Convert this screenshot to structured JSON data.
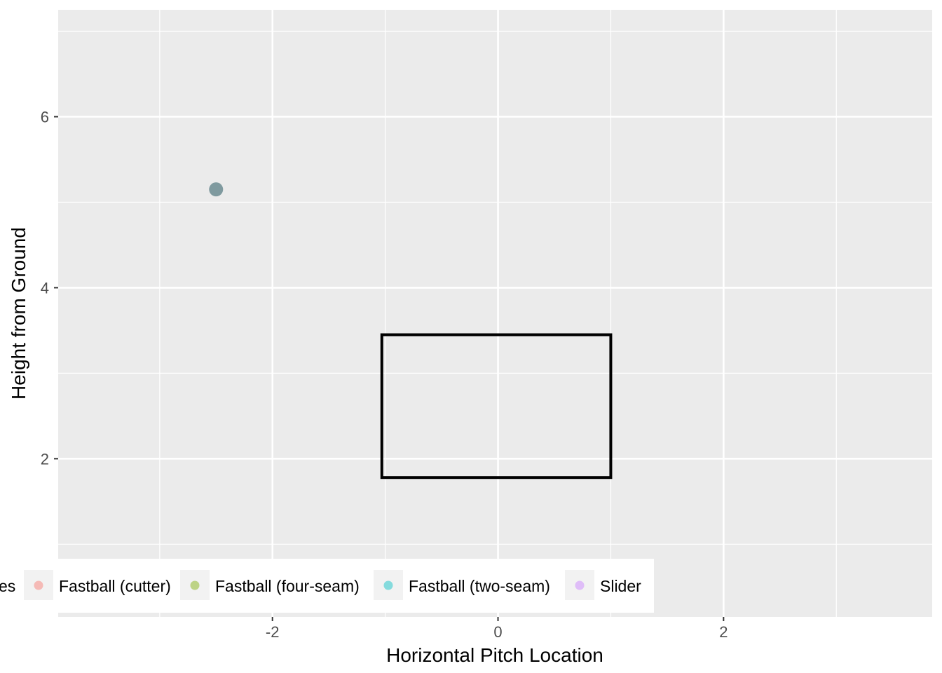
{
  "chart_data": {
    "type": "scatter",
    "title": "",
    "xlabel": "Horizontal Pitch Location",
    "ylabel": "Height from Ground",
    "xlim": [
      -3.9,
      3.85
    ],
    "ylim": [
      0.15,
      7.25
    ],
    "x_ticks": [
      {
        "value": -2,
        "label": "-2"
      },
      {
        "value": 0,
        "label": "0"
      },
      {
        "value": 2,
        "label": "2"
      }
    ],
    "y_ticks": [
      {
        "value": 2,
        "label": "2"
      },
      {
        "value": 4,
        "label": "4"
      },
      {
        "value": 6,
        "label": "6"
      }
    ],
    "x_minor": [
      -3,
      -1,
      1,
      3
    ],
    "y_minor": [
      1,
      3,
      5,
      7
    ],
    "grid": true,
    "legend_position": "bottom",
    "legend_title": "es",
    "series": [
      {
        "name": "Fastball (cutter)",
        "color": "#F8766D",
        "x": [],
        "y": []
      },
      {
        "name": "Fastball (four-seam)",
        "color": "#7CAE00",
        "x": [],
        "y": []
      },
      {
        "name": "Fastball (two-seam)",
        "color": "#00BFC4",
        "x": [],
        "y": []
      },
      {
        "name": "Slider",
        "color": "#C77CFF",
        "x": [],
        "y": []
      }
    ],
    "observed_points": [
      {
        "x": -2.5,
        "y": 5.15,
        "color": "#7f9a9f"
      }
    ],
    "strike_zone": {
      "x_min": -1.03,
      "x_max": 1.0,
      "y_min": 1.78,
      "y_max": 3.45
    }
  }
}
